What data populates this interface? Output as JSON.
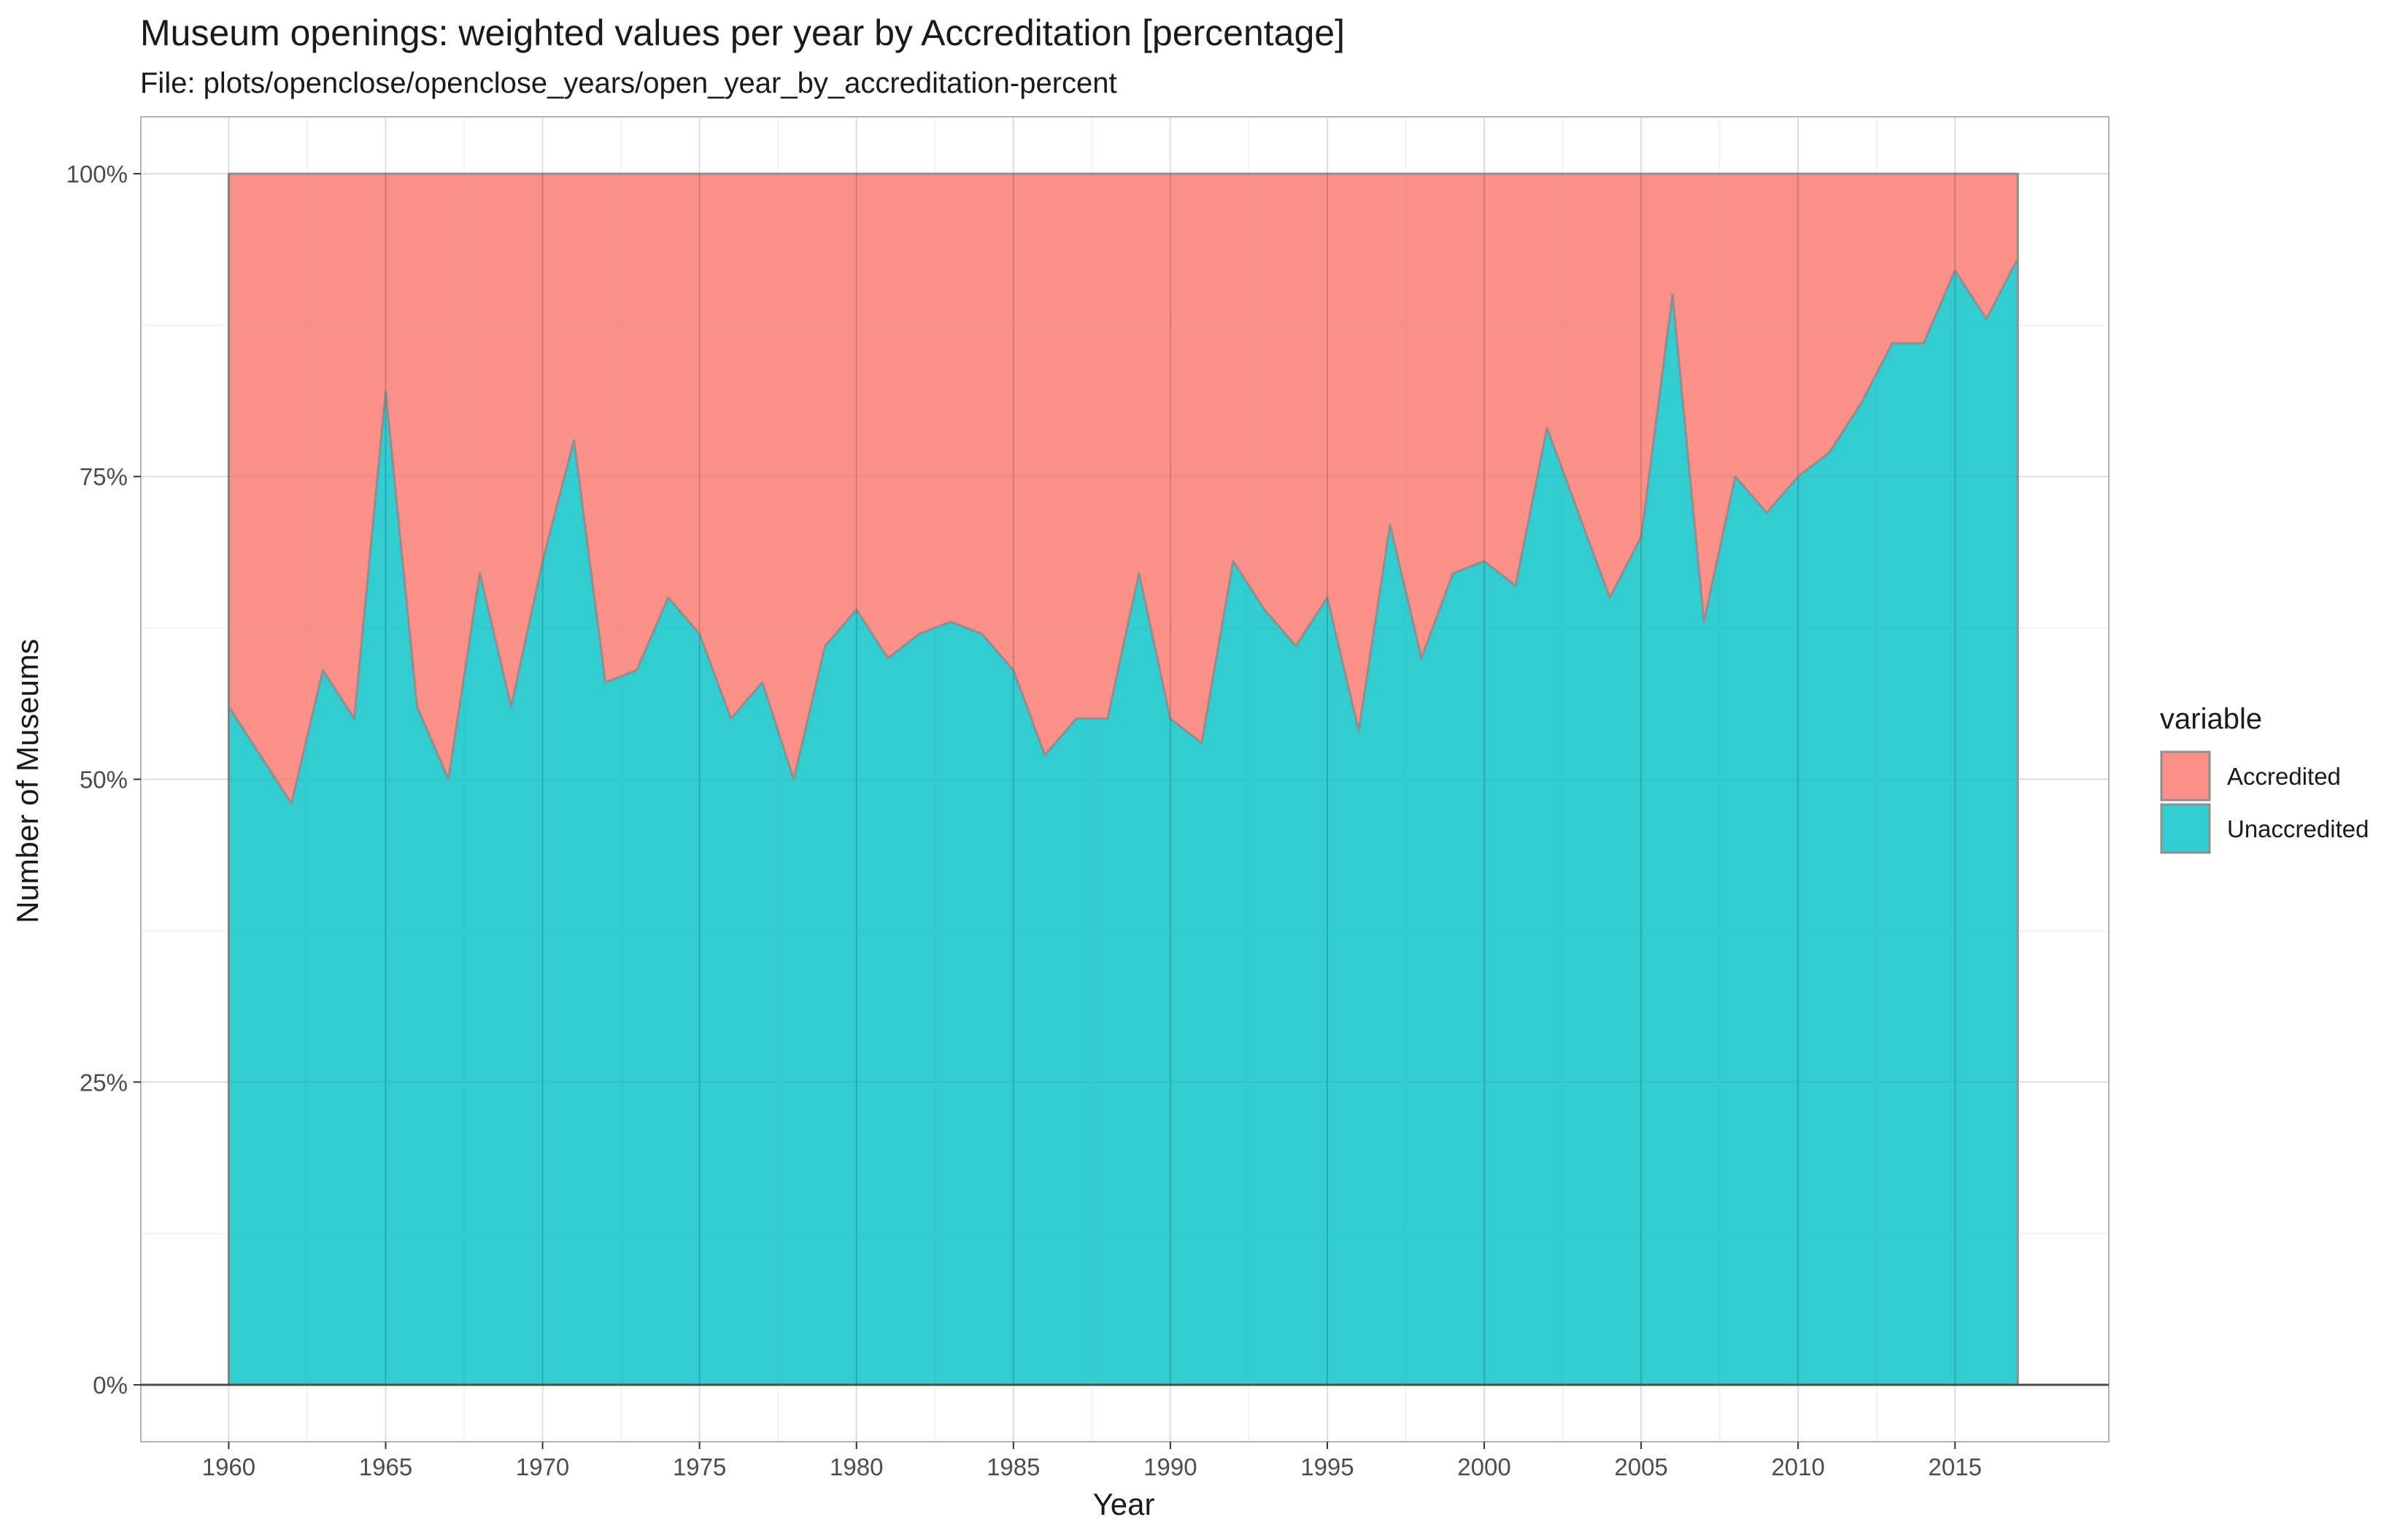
{
  "chart_data": {
    "type": "area",
    "stacked": true,
    "percent": true,
    "title": "Museum openings: weighted values per year by Accreditation [percentage]",
    "subtitle": "File: plots/openclose/openclose_years/open_year_by_accreditation-percent",
    "xlabel": "Year",
    "ylabel": "Number of Museums",
    "xlim": [
      1957.2,
      2019.9
    ],
    "ylim": [
      -0.047,
      1.047
    ],
    "x_ticks": [
      1960,
      1965,
      1970,
      1975,
      1980,
      1985,
      1990,
      1995,
      2000,
      2005,
      2010,
      2015
    ],
    "y_ticks": [
      0,
      0.25,
      0.5,
      0.75,
      1.0
    ],
    "y_tick_labels": [
      "0%",
      "25%",
      "50%",
      "75%",
      "100%"
    ],
    "grid": true,
    "legend": {
      "title": "variable",
      "position": "right"
    },
    "x": [
      1960,
      1961,
      1962,
      1963,
      1964,
      1965,
      1966,
      1967,
      1968,
      1969,
      1970,
      1971,
      1972,
      1973,
      1974,
      1975,
      1976,
      1977,
      1978,
      1979,
      1980,
      1981,
      1982,
      1983,
      1984,
      1985,
      1986,
      1987,
      1988,
      1989,
      1990,
      1991,
      1992,
      1993,
      1994,
      1995,
      1996,
      1997,
      1998,
      1999,
      2000,
      2001,
      2002,
      2003,
      2004,
      2005,
      2006,
      2007,
      2008,
      2009,
      2010,
      2011,
      2012,
      2013,
      2014,
      2015,
      2016,
      2017
    ],
    "series": [
      {
        "name": "Accredited",
        "color": "#F8766D",
        "values": [
          0.44,
          0.48,
          0.52,
          0.41,
          0.45,
          0.18,
          0.44,
          0.5,
          0.33,
          0.44,
          0.32,
          0.22,
          0.42,
          0.41,
          0.35,
          0.38,
          0.45,
          0.42,
          0.5,
          0.39,
          0.36,
          0.4,
          0.38,
          0.37,
          0.38,
          0.41,
          0.48,
          0.45,
          0.45,
          0.33,
          0.45,
          0.47,
          0.32,
          0.36,
          0.39,
          0.35,
          0.46,
          0.29,
          0.4,
          0.33,
          0.32,
          0.34,
          0.21,
          0.28,
          0.35,
          0.3,
          0.1,
          0.37,
          0.25,
          0.28,
          0.25,
          0.23,
          0.19,
          0.14,
          0.14,
          0.08,
          0.12,
          0.07
        ]
      },
      {
        "name": "Unaccredited",
        "color": "#00BFC4",
        "values": [
          0.56,
          0.52,
          0.48,
          0.59,
          0.55,
          0.82,
          0.56,
          0.5,
          0.67,
          0.56,
          0.68,
          0.78,
          0.58,
          0.59,
          0.65,
          0.62,
          0.55,
          0.58,
          0.5,
          0.61,
          0.64,
          0.6,
          0.62,
          0.63,
          0.62,
          0.59,
          0.52,
          0.55,
          0.55,
          0.67,
          0.55,
          0.53,
          0.68,
          0.64,
          0.61,
          0.65,
          0.54,
          0.71,
          0.6,
          0.67,
          0.68,
          0.66,
          0.79,
          0.72,
          0.65,
          0.7,
          0.9,
          0.63,
          0.75,
          0.72,
          0.75,
          0.77,
          0.81,
          0.86,
          0.86,
          0.92,
          0.88,
          0.93
        ]
      }
    ]
  }
}
